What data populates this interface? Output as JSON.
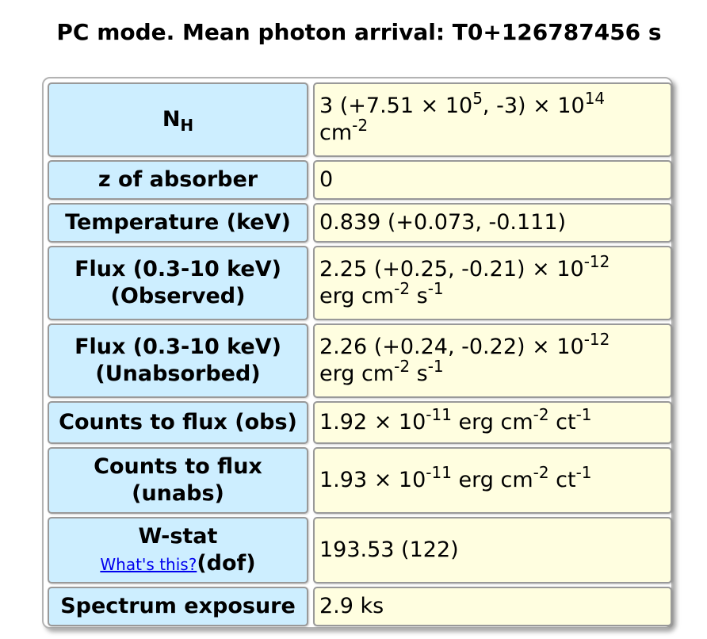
{
  "title": "PC mode. Mean photon arrival: T0+126787456 s",
  "rows": [
    {
      "label_main": "N",
      "label_sub": "H",
      "value_line1": "3 (+7.51 × 10",
      "value_sup1": "5",
      "value_mid": ", -3) × 10",
      "value_sup2": "14",
      "value_line2": "cm",
      "value_sup3": "-2"
    },
    {
      "label": "z of absorber",
      "value": "0"
    },
    {
      "label": "Temperature (keV)",
      "value": "0.839 (+0.073, -0.111)"
    },
    {
      "label_line1": "Flux (0.3-10 keV)",
      "label_line2": "(Observed)",
      "value_line1": "2.25 (+0.25, -0.21) × 10",
      "value_sup1": "-12",
      "value_line2a": "erg cm",
      "value_sup2": "-2",
      "value_line2b": " s",
      "value_sup3": "-1"
    },
    {
      "label_line1": "Flux (0.3-10 keV)",
      "label_line2": "(Unabsorbed)",
      "value_line1": "2.26 (+0.24, -0.22) × 10",
      "value_sup1": "-12",
      "value_line2a": "erg cm",
      "value_sup2": "-2",
      "value_line2b": " s",
      "value_sup3": "-1"
    },
    {
      "label": "Counts to flux (obs)",
      "value_a": "1.92 × 10",
      "value_sup1": "-11",
      "value_b": " erg cm",
      "value_sup2": "-2",
      "value_c": " ct",
      "value_sup3": "-1"
    },
    {
      "label_line1": "Counts to flux",
      "label_line2": "(unabs)",
      "value_a": "1.93 × 10",
      "value_sup1": "-11",
      "value_b": " erg cm",
      "value_sup2": "-2",
      "value_c": " ct",
      "value_sup3": "-1"
    },
    {
      "label_line1": "W-stat",
      "help_link": "What's this?",
      "label_line2": "(dof)",
      "value": "193.53 (122)"
    },
    {
      "label": "Spectrum exposure",
      "value": "2.9 ks"
    }
  ]
}
